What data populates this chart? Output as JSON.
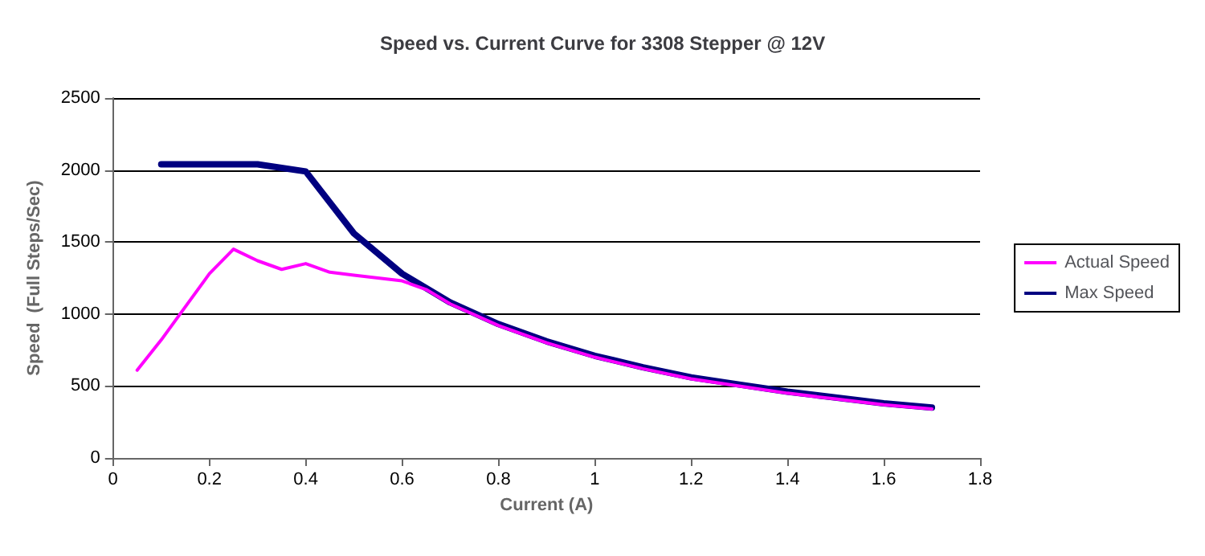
{
  "chart_data": {
    "type": "line",
    "title": "Speed vs. Current Curve for 3308 Stepper @ 12V",
    "xlabel": "Current (A)",
    "ylabel": "Speed  (Full Steps/Sec)",
    "series": [
      {
        "name": "Actual Speed",
        "color": "#ff00ff",
        "x": [
          0.05,
          0.1,
          0.15,
          0.2,
          0.25,
          0.3,
          0.35,
          0.4,
          0.45,
          0.5,
          0.55,
          0.6,
          0.65,
          0.7,
          0.8,
          0.9,
          1.0,
          1.1,
          1.2,
          1.3,
          1.4,
          1.5,
          1.6,
          1.7
        ],
        "values": [
          610,
          820,
          1050,
          1280,
          1450,
          1370,
          1310,
          1350,
          1290,
          1270,
          1250,
          1230,
          1170,
          1070,
          920,
          800,
          700,
          620,
          550,
          500,
          450,
          410,
          370,
          340
        ]
      },
      {
        "name": "Max Speed",
        "color": "#000080",
        "x": [
          0.1,
          0.2,
          0.3,
          0.4,
          0.5,
          0.6,
          0.7,
          0.8,
          0.9,
          1.0,
          1.1,
          1.2,
          1.3,
          1.4,
          1.5,
          1.6,
          1.7
        ],
        "values": [
          2040,
          2040,
          2040,
          1990,
          1560,
          1280,
          1080,
          930,
          810,
          710,
          630,
          560,
          510,
          460,
          420,
          380,
          350
        ]
      }
    ],
    "xlim": [
      0,
      1.8
    ],
    "xticks": [
      0,
      0.2,
      0.4,
      0.6,
      0.8,
      1,
      1.2,
      1.4,
      1.6,
      1.8
    ],
    "ylim": [
      0,
      2500
    ],
    "yticks": [
      0,
      500,
      1000,
      1500,
      2000,
      2500
    ],
    "grid": "y",
    "legend": "right",
    "marker": "none",
    "line_style": "solid"
  }
}
